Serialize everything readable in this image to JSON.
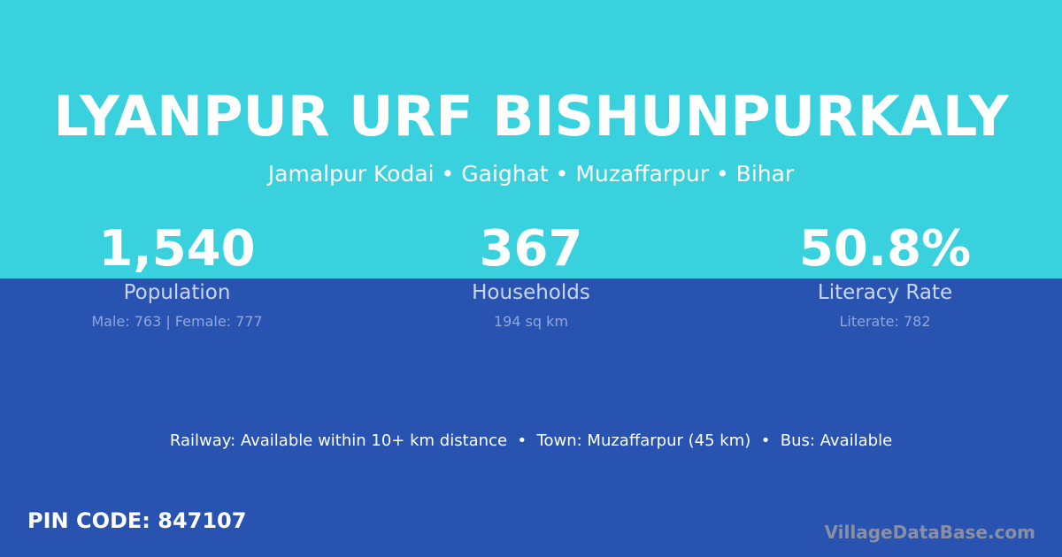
{
  "header": {
    "title": "LYANPUR URF BISHUNPURKALY",
    "location": "Jamalpur Kodai • Gaighat • Muzaffarpur • Bihar"
  },
  "stats": [
    {
      "value": "1,540",
      "label": "Population",
      "detail": "Male: 763 | Female: 777"
    },
    {
      "value": "367",
      "label": "Households",
      "detail": "194 sq km"
    },
    {
      "value": "50.8%",
      "label": "Literacy Rate",
      "detail": "Literate: 782"
    }
  ],
  "info": "Railway: Available within 10+ km distance  •  Town: Muzaffarpur (45 km)  •  Bus: Available",
  "pin": "PIN CODE: 847107",
  "watermark": "VillageDataBase.com",
  "colors": {
    "top": "#38d1dd",
    "bottom": "#2853b1"
  }
}
